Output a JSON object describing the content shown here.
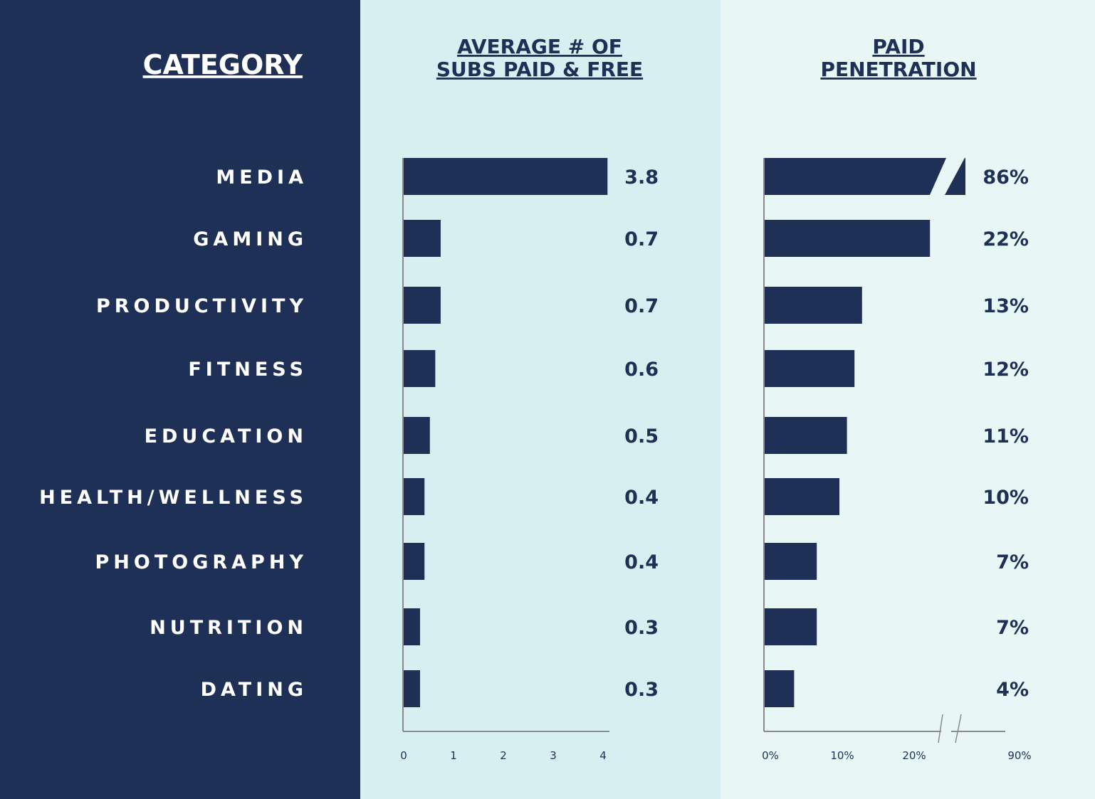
{
  "colors": {
    "navy": "#1f3056",
    "panel_left": "#1f3056",
    "panel_mid": "#d6eff0",
    "panel_right": "#e8f6f6",
    "axis": "#8a8a8a"
  },
  "headers": {
    "category": "CATEGORY",
    "avg_line1": "AVERAGE # OF",
    "avg_line2": "SUBS PAID & FREE",
    "pen_line1": "PAID",
    "pen_line2": "PENETRATION"
  },
  "chart_data": [
    {
      "type": "bar",
      "orientation": "horizontal",
      "title": "AVERAGE # OF SUBS PAID & FREE",
      "categories": [
        "MEDIA",
        "GAMING",
        "PRODUCTIVITY",
        "FITNESS",
        "EDUCATION",
        "HEALTH/WELLNESS",
        "PHOTOGRAPHY",
        "NUTRITION",
        "DATING"
      ],
      "values": [
        3.8,
        0.7,
        0.7,
        0.6,
        0.5,
        0.4,
        0.4,
        0.3,
        0.3
      ],
      "value_labels": [
        "3.8",
        "0.7",
        "0.7",
        "0.6",
        "0.5",
        "0.4",
        "0.4",
        "0.3",
        "0.3"
      ],
      "xlim": [
        0,
        4
      ],
      "xticks": [
        "0",
        "1",
        "2",
        "3",
        "4"
      ],
      "grid": false
    },
    {
      "type": "bar",
      "orientation": "horizontal",
      "title": "PAID PENETRATION",
      "categories": [
        "MEDIA",
        "GAMING",
        "PRODUCTIVITY",
        "FITNESS",
        "EDUCATION",
        "HEALTH/WELLNESS",
        "PHOTOGRAPHY",
        "NUTRITION",
        "DATING"
      ],
      "values": [
        86,
        22,
        13,
        12,
        11,
        10,
        7,
        7,
        4
      ],
      "value_labels": [
        "86%",
        "22%",
        "13%",
        "12%",
        "11%",
        "10%",
        "7%",
        "7%",
        "4%"
      ],
      "xlim": [
        0,
        90
      ],
      "axis_break": true,
      "xticks": [
        "0%",
        "10%",
        "20%",
        "90%"
      ],
      "grid": false
    }
  ]
}
